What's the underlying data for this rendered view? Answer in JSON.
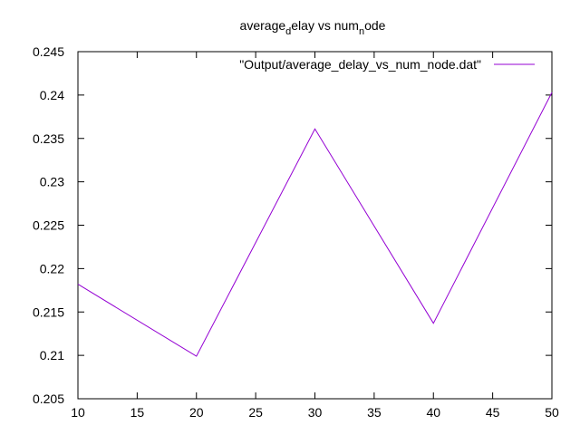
{
  "chart_data": {
    "type": "line",
    "title_main": "average",
    "title_sub1": "d",
    "title_mid": "elay vs num",
    "title_sub2": "n",
    "title_end": "ode",
    "xlabel": "",
    "ylabel": "",
    "xlim": [
      10,
      50
    ],
    "ylim": [
      0.205,
      0.245
    ],
    "xticks": [
      "10",
      "15",
      "20",
      "25",
      "30",
      "35",
      "40",
      "45",
      "50"
    ],
    "yticks": [
      "0.205",
      "0.21",
      "0.215",
      "0.22",
      "0.225",
      "0.23",
      "0.235",
      "0.24",
      "0.245"
    ],
    "grid": false,
    "legend_position": "top-right",
    "series": [
      {
        "name": "\"Output/average_delay_vs_num_node.dat\"",
        "color": "#9400d3",
        "x": [
          10,
          20,
          30,
          40,
          50
        ],
        "y": [
          0.2182,
          0.2099,
          0.2361,
          0.2137,
          0.2403
        ]
      }
    ]
  }
}
